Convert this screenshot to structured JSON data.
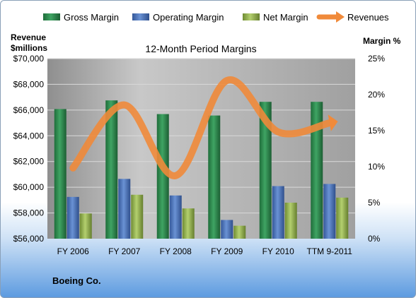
{
  "chart_data": {
    "type": "bar",
    "title": "12-Month Period Margins",
    "company": "Boeing Co.",
    "categories": [
      "FY 2006",
      "FY 2007",
      "FY 2008",
      "FY 2009",
      "FY 2010",
      "TTM 9-2011"
    ],
    "left_axis": {
      "label_line1": "Revenue",
      "label_line2": "$millions",
      "range": [
        56000,
        70000
      ],
      "ticks": [
        "$56,000",
        "$58,000",
        "$60,000",
        "$62,000",
        "$64,000",
        "$66,000",
        "$68,000",
        "$70,000"
      ],
      "tick_values": [
        56000,
        58000,
        60000,
        62000,
        64000,
        66000,
        68000,
        70000
      ]
    },
    "right_axis": {
      "label": "Margin %",
      "range": [
        0,
        25
      ],
      "ticks": [
        "0%",
        "5%",
        "10%",
        "15%",
        "20%",
        "25%"
      ],
      "tick_values": [
        0,
        5,
        10,
        15,
        20,
        25
      ]
    },
    "series": [
      {
        "name": "Gross Margin",
        "axis": "right",
        "kind": "bar",
        "color": "#2e8b4e",
        "values": [
          18.0,
          19.2,
          17.3,
          17.1,
          19.0,
          19.0
        ]
      },
      {
        "name": "Operating Margin",
        "axis": "right",
        "kind": "bar",
        "color": "#4a74b8",
        "values": [
          5.8,
          8.3,
          6.0,
          2.6,
          7.3,
          7.6
        ]
      },
      {
        "name": "Net Margin",
        "axis": "right",
        "kind": "bar",
        "color": "#92b24c",
        "values": [
          3.5,
          6.1,
          4.2,
          1.8,
          5.0,
          5.7
        ]
      },
      {
        "name": "Revenues",
        "axis": "left",
        "kind": "line",
        "color": "#f08a3a",
        "values": [
          61500,
          66400,
          60900,
          68300,
          64300,
          65000
        ]
      }
    ],
    "grid": true,
    "legend": "top"
  },
  "colors": {
    "plot_bg": "#a6a6a6",
    "plot_bg_light": "#c4c4c4",
    "revenue_line": "#f08a3a"
  }
}
